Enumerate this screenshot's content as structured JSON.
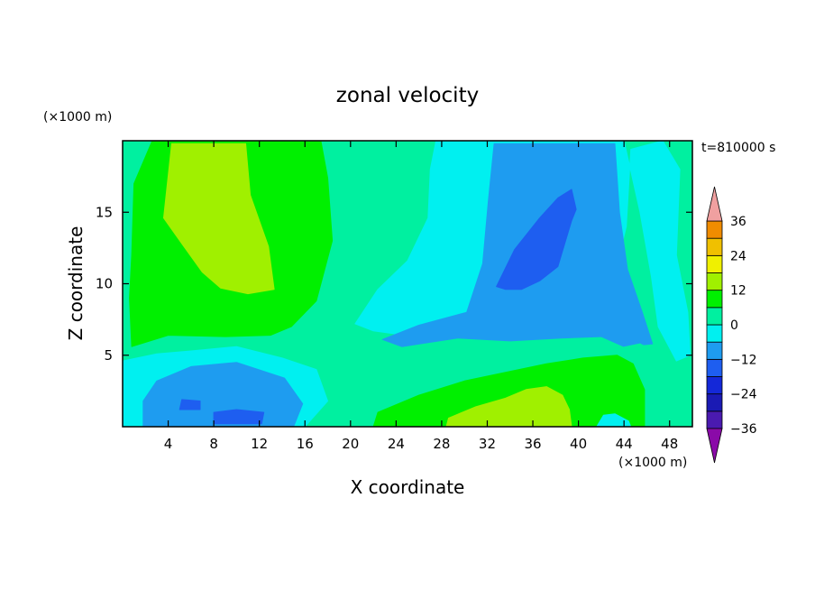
{
  "chart_data": {
    "type": "heatmap",
    "title": "zonal velocity",
    "xlabel": "X coordinate",
    "ylabel": "Z coordinate",
    "x_unit": "(×1000 m)",
    "y_unit": "(×1000 m)",
    "time_label": "t=810000 s",
    "xlim": [
      0,
      50
    ],
    "ylim": [
      0,
      20
    ],
    "x_ticks": [
      4,
      8,
      12,
      16,
      20,
      24,
      28,
      32,
      36,
      40,
      44,
      48
    ],
    "y_ticks": [
      5,
      10,
      15
    ],
    "colorbar": {
      "labels": [
        36,
        24,
        12,
        0,
        -12,
        -24,
        -36
      ],
      "levels": [
        -36,
        -30,
        -24,
        -18,
        -12,
        -6,
        0,
        6,
        12,
        18,
        24,
        30,
        36
      ],
      "colors": [
        "#8a0aa8",
        "#4a1ab0",
        "#1a1ab4",
        "#1428d8",
        "#1e5ef0",
        "#1e9cf0",
        "#00f0f0",
        "#00f0a0",
        "#00f000",
        "#a0f000",
        "#f0f000",
        "#f0c000",
        "#f08c00",
        "#f05000",
        "#f00000",
        "#f0a0a0"
      ]
    },
    "regions": [
      {
        "value": 3,
        "points": [
          [
            0,
            0
          ],
          [
            50,
            0
          ],
          [
            50,
            20
          ],
          [
            0,
            20
          ]
        ]
      },
      {
        "value": -4,
        "points": [
          [
            0,
            0
          ],
          [
            16,
            0
          ],
          [
            18,
            1.8
          ],
          [
            17,
            4
          ],
          [
            14,
            4.8
          ],
          [
            10,
            5.6
          ],
          [
            6,
            5.3
          ],
          [
            3,
            5.1
          ],
          [
            0,
            4.6
          ]
        ]
      },
      {
        "value": -9,
        "points": [
          [
            1.8,
            0
          ],
          [
            15,
            0
          ],
          [
            15.8,
            1.6
          ],
          [
            14.2,
            3.4
          ],
          [
            10,
            4.5
          ],
          [
            6,
            4.2
          ],
          [
            3,
            3.2
          ],
          [
            1.8,
            1.8
          ]
        ]
      },
      {
        "value": -15,
        "points": [
          [
            8,
            0.2
          ],
          [
            12.2,
            0.2
          ],
          [
            12.4,
            1
          ],
          [
            10,
            1.2
          ],
          [
            8,
            1
          ]
        ]
      },
      {
        "value": -15,
        "points": [
          [
            5,
            1.2
          ],
          [
            6.8,
            1.2
          ],
          [
            6.8,
            1.8
          ],
          [
            5.2,
            1.9
          ]
        ]
      },
      {
        "value": 9,
        "points": [
          [
            0.8,
            5.6
          ],
          [
            4,
            6.4
          ],
          [
            9,
            6.3
          ],
          [
            13,
            6.4
          ],
          [
            14.8,
            7
          ],
          [
            17,
            8.8
          ],
          [
            18.4,
            13
          ],
          [
            18,
            17.4
          ],
          [
            17.4,
            20
          ],
          [
            2.6,
            20
          ],
          [
            1,
            17
          ],
          [
            0.8,
            12
          ],
          [
            0.6,
            9
          ]
        ]
      },
      {
        "value": 14,
        "points": [
          [
            3.6,
            14.6
          ],
          [
            4.3,
            19.8
          ],
          [
            10.8,
            19.8
          ],
          [
            11.2,
            16.2
          ],
          [
            12.8,
            12.6
          ],
          [
            13.3,
            9.6
          ],
          [
            11,
            9.3
          ],
          [
            8.6,
            9.7
          ],
          [
            7,
            10.8
          ],
          [
            5.2,
            12.8
          ]
        ]
      },
      {
        "value": -4,
        "points": [
          [
            27.5,
            20
          ],
          [
            44,
            20
          ],
          [
            45.4,
            15
          ],
          [
            46.4,
            10.5
          ],
          [
            47,
            7
          ],
          [
            48.6,
            4.6
          ],
          [
            49.8,
            5
          ],
          [
            49.6,
            8
          ],
          [
            48.6,
            12
          ],
          [
            48.9,
            18
          ],
          [
            47.4,
            20
          ],
          [
            44.6,
            19.4
          ],
          [
            44.2,
            14
          ],
          [
            42.4,
            8
          ],
          [
            38.8,
            6.8
          ],
          [
            33,
            6.6
          ],
          [
            28,
            6.6
          ],
          [
            24.8,
            6.4
          ],
          [
            22,
            6.7
          ],
          [
            20.4,
            7.2
          ],
          [
            22.4,
            9.6
          ],
          [
            25,
            11.6
          ],
          [
            26.8,
            14.6
          ],
          [
            27,
            18
          ]
        ]
      },
      {
        "value": -9,
        "points": [
          [
            32.6,
            19.8
          ],
          [
            43.2,
            19.8
          ],
          [
            43.6,
            15
          ],
          [
            44.3,
            11
          ],
          [
            45.6,
            8
          ],
          [
            46.5,
            5.8
          ],
          [
            44,
            5.6
          ],
          [
            42,
            6.3
          ],
          [
            38.5,
            6.2
          ],
          [
            34,
            6
          ],
          [
            29.4,
            6.2
          ],
          [
            24.5,
            5.6
          ],
          [
            22.8,
            6.1
          ],
          [
            26,
            7.1
          ],
          [
            30.2,
            8
          ],
          [
            31.6,
            11.4
          ],
          [
            32.1,
            15.8
          ]
        ]
      },
      {
        "value": -15,
        "points": [
          [
            32.8,
            9.8
          ],
          [
            34.4,
            12.4
          ],
          [
            36.6,
            14.6
          ],
          [
            38.2,
            16
          ],
          [
            39.4,
            16.6
          ],
          [
            39.8,
            15.2
          ],
          [
            39.4,
            14.4
          ],
          [
            38.8,
            12.8
          ],
          [
            38.2,
            11.2
          ],
          [
            36.6,
            10.2
          ],
          [
            35,
            9.6
          ],
          [
            33.6,
            9.6
          ]
        ]
      },
      {
        "value": 3,
        "points": [
          [
            20.8,
            2.6
          ],
          [
            26,
            3.2
          ],
          [
            31,
            4.4
          ],
          [
            35,
            4.6
          ],
          [
            39,
            5
          ],
          [
            43,
            5.4
          ],
          [
            45.4,
            5.8
          ],
          [
            47.8,
            4.8
          ],
          [
            49.8,
            3.6
          ],
          [
            49.8,
            0
          ],
          [
            20,
            0
          ]
        ]
      },
      {
        "value": 9,
        "points": [
          [
            22,
            0
          ],
          [
            22.4,
            1
          ],
          [
            26,
            2.2
          ],
          [
            30,
            3.2
          ],
          [
            33.6,
            3.8
          ],
          [
            37.2,
            4.4
          ],
          [
            40.4,
            4.8
          ],
          [
            43.4,
            5
          ],
          [
            44.8,
            4.4
          ],
          [
            45.8,
            2.6
          ],
          [
            45.8,
            0
          ]
        ]
      },
      {
        "value": 14,
        "points": [
          [
            28.4,
            0
          ],
          [
            28.6,
            0.6
          ],
          [
            31,
            1.4
          ],
          [
            33.6,
            2
          ],
          [
            35.4,
            2.6
          ],
          [
            37.2,
            2.8
          ],
          [
            38.6,
            2.2
          ],
          [
            39.2,
            1.2
          ],
          [
            39.4,
            0
          ]
        ]
      },
      {
        "value": -4,
        "points": [
          [
            41.6,
            0
          ],
          [
            42.2,
            0.8
          ],
          [
            43.2,
            0.9
          ],
          [
            44.4,
            0.4
          ],
          [
            44.6,
            0
          ]
        ]
      }
    ]
  }
}
